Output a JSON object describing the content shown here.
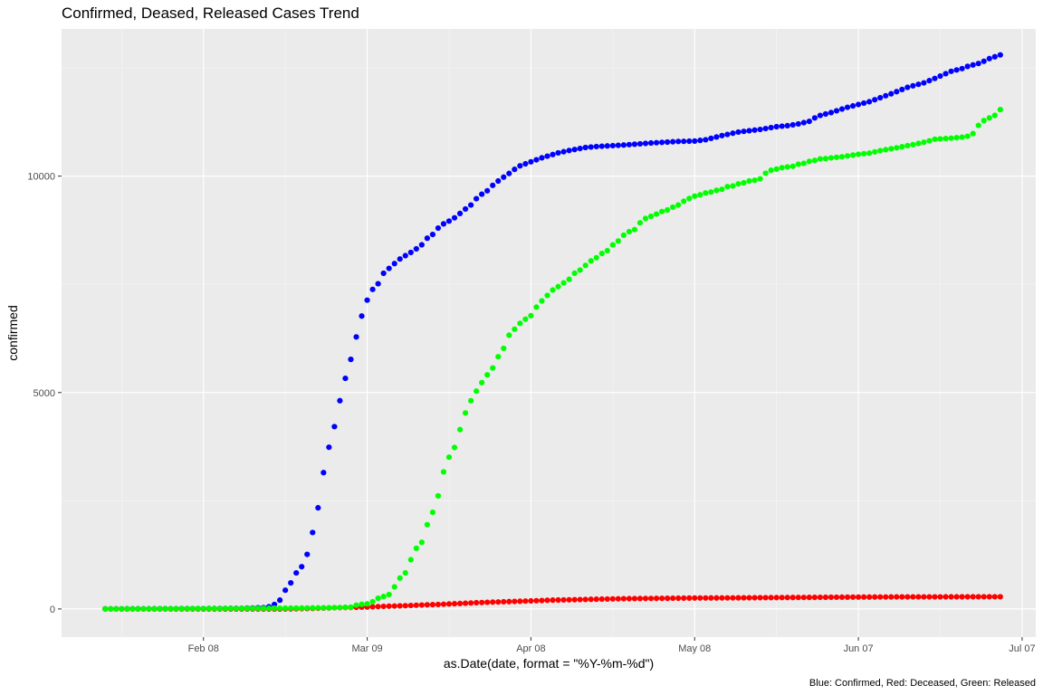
{
  "chart_data": {
    "type": "scatter",
    "title": "Confirmed, Deased, Released Cases Trend",
    "xlabel": "as.Date(date, format = \"%Y-%m-%d\")",
    "ylabel": "confirmed",
    "caption": "Blue: Confirmed, Red: Deceased, Green: Released",
    "x_ticks": [
      "Feb 08",
      "Mar 09",
      "Apr 08",
      "May 08",
      "Jun 07",
      "Jul 07"
    ],
    "x_tick_days": [
      18,
      48,
      78,
      108,
      138,
      168
    ],
    "y_ticks": [
      0,
      5000,
      10000
    ],
    "y_tick_labels": [
      "0",
      "5000",
      "10000"
    ],
    "xlim_days": [
      -8,
      170.5
    ],
    "ylim": [
      -650,
      13400
    ],
    "x_start_date": "2020-01-21",
    "x_end_date": "2020-06-30",
    "grid": true,
    "legend": "none",
    "series": [
      {
        "key": "confirmed",
        "color": "#0000ff",
        "anchors": [
          [
            0,
            1
          ],
          [
            20,
            11
          ],
          [
            25,
            15
          ],
          [
            29,
            31
          ],
          [
            30,
            51
          ],
          [
            31,
            104
          ],
          [
            32,
            204
          ],
          [
            33,
            433
          ],
          [
            34,
            602
          ],
          [
            35,
            833
          ],
          [
            36,
            977
          ],
          [
            37,
            1261
          ],
          [
            38,
            1766
          ],
          [
            39,
            2337
          ],
          [
            40,
            3150
          ],
          [
            41,
            3736
          ],
          [
            42,
            4212
          ],
          [
            43,
            4812
          ],
          [
            44,
            5328
          ],
          [
            45,
            5766
          ],
          [
            46,
            6284
          ],
          [
            47,
            6767
          ],
          [
            48,
            7134
          ],
          [
            49,
            7382
          ],
          [
            50,
            7513
          ],
          [
            51,
            7755
          ],
          [
            52,
            7869
          ],
          [
            53,
            7979
          ],
          [
            54,
            8086
          ],
          [
            55,
            8162
          ],
          [
            56,
            8236
          ],
          [
            57,
            8320
          ],
          [
            58,
            8413
          ],
          [
            59,
            8565
          ],
          [
            60,
            8652
          ],
          [
            61,
            8799
          ],
          [
            62,
            8897
          ],
          [
            63,
            8961
          ],
          [
            64,
            9037
          ],
          [
            65,
            9137
          ],
          [
            66,
            9241
          ],
          [
            67,
            9332
          ],
          [
            68,
            9478
          ],
          [
            69,
            9583
          ],
          [
            70,
            9661
          ],
          [
            71,
            9786
          ],
          [
            72,
            9887
          ],
          [
            73,
            9976
          ],
          [
            74,
            10062
          ],
          [
            75,
            10156
          ],
          [
            76,
            10237
          ],
          [
            77,
            10284
          ],
          [
            78,
            10331
          ],
          [
            80,
            10423
          ],
          [
            83,
            10537
          ],
          [
            85,
            10591
          ],
          [
            88,
            10661
          ],
          [
            90,
            10683
          ],
          [
            95,
            10718
          ],
          [
            100,
            10765
          ],
          [
            105,
            10801
          ],
          [
            108,
            10810
          ],
          [
            110,
            10840
          ],
          [
            113,
            10936
          ],
          [
            116,
            11018
          ],
          [
            120,
            11078
          ],
          [
            123,
            11142
          ],
          [
            125,
            11165
          ],
          [
            127,
            11206
          ],
          [
            129,
            11265
          ],
          [
            130,
            11344
          ],
          [
            131,
            11402
          ],
          [
            133,
            11468
          ],
          [
            136,
            11590
          ],
          [
            140,
            11719
          ],
          [
            144,
            11902
          ],
          [
            147,
            12051
          ],
          [
            150,
            12155
          ],
          [
            152,
            12257
          ],
          [
            155,
            12421
          ],
          [
            157,
            12484
          ],
          [
            158,
            12535
          ],
          [
            160,
            12602
          ],
          [
            161,
            12653
          ],
          [
            162,
            12715
          ],
          [
            163,
            12757
          ],
          [
            164,
            12800
          ]
        ]
      },
      {
        "key": "deceased",
        "color": "#ff0000",
        "anchors": [
          [
            0,
            0
          ],
          [
            31,
            0
          ],
          [
            34,
            2
          ],
          [
            38,
            13
          ],
          [
            42,
            28
          ],
          [
            45,
            35
          ],
          [
            48,
            44
          ],
          [
            51,
            60
          ],
          [
            55,
            75
          ],
          [
            58,
            91
          ],
          [
            61,
            104
          ],
          [
            65,
            126
          ],
          [
            68,
            144
          ],
          [
            71,
            158
          ],
          [
            75,
            174
          ],
          [
            78,
            186
          ],
          [
            82,
            204
          ],
          [
            86,
            214
          ],
          [
            90,
            225
          ],
          [
            95,
            237
          ],
          [
            100,
            243
          ],
          [
            108,
            252
          ],
          [
            115,
            256
          ],
          [
            125,
            264
          ],
          [
            135,
            272
          ],
          [
            145,
            278
          ],
          [
            155,
            280
          ],
          [
            164,
            282
          ]
        ]
      },
      {
        "key": "released",
        "color": "#00ff00",
        "anchors": [
          [
            0,
            0
          ],
          [
            30,
            16
          ],
          [
            37,
            22
          ],
          [
            42,
            30
          ],
          [
            45,
            41
          ],
          [
            46,
            88
          ],
          [
            47,
            108
          ],
          [
            48,
            118
          ],
          [
            49,
            166
          ],
          [
            50,
            247
          ],
          [
            51,
            288
          ],
          [
            52,
            333
          ],
          [
            53,
            510
          ],
          [
            54,
            714
          ],
          [
            55,
            834
          ],
          [
            56,
            1137
          ],
          [
            57,
            1401
          ],
          [
            58,
            1540
          ],
          [
            59,
            1947
          ],
          [
            60,
            2233
          ],
          [
            61,
            2612
          ],
          [
            62,
            3166
          ],
          [
            63,
            3507
          ],
          [
            64,
            3730
          ],
          [
            65,
            4144
          ],
          [
            66,
            4528
          ],
          [
            67,
            4811
          ],
          [
            68,
            5033
          ],
          [
            69,
            5228
          ],
          [
            70,
            5408
          ],
          [
            71,
            5567
          ],
          [
            72,
            5828
          ],
          [
            73,
            6021
          ],
          [
            74,
            6325
          ],
          [
            75,
            6463
          ],
          [
            76,
            6598
          ],
          [
            77,
            6694
          ],
          [
            78,
            6776
          ],
          [
            79,
            6973
          ],
          [
            80,
            7117
          ],
          [
            81,
            7243
          ],
          [
            82,
            7368
          ],
          [
            83,
            7447
          ],
          [
            84,
            7534
          ],
          [
            85,
            7616
          ],
          [
            86,
            7757
          ],
          [
            87,
            7829
          ],
          [
            88,
            7937
          ],
          [
            89,
            8042
          ],
          [
            90,
            8114
          ],
          [
            91,
            8213
          ],
          [
            92,
            8277
          ],
          [
            93,
            8411
          ],
          [
            94,
            8501
          ],
          [
            95,
            8635
          ],
          [
            96,
            8717
          ],
          [
            97,
            8764
          ],
          [
            98,
            8922
          ],
          [
            99,
            9022
          ],
          [
            100,
            9072
          ],
          [
            101,
            9123
          ],
          [
            102,
            9183
          ],
          [
            103,
            9218
          ],
          [
            104,
            9283
          ],
          [
            105,
            9333
          ],
          [
            106,
            9419
          ],
          [
            107,
            9484
          ],
          [
            108,
            9538
          ],
          [
            109,
            9568
          ],
          [
            110,
            9610
          ],
          [
            111,
            9632
          ],
          [
            112,
            9671
          ],
          [
            113,
            9695
          ],
          [
            114,
            9757
          ],
          [
            115,
            9772
          ],
          [
            116,
            9821
          ],
          [
            117,
            9846
          ],
          [
            118,
            9888
          ],
          [
            119,
            9904
          ],
          [
            120,
            9938
          ],
          [
            121,
            10066
          ],
          [
            122,
            10135
          ],
          [
            123,
            10162
          ],
          [
            124,
            10194
          ],
          [
            125,
            10213
          ],
          [
            126,
            10226
          ],
          [
            127,
            10275
          ],
          [
            128,
            10295
          ],
          [
            129,
            10340
          ],
          [
            130,
            10363
          ],
          [
            131,
            10398
          ],
          [
            132,
            10405
          ],
          [
            133,
            10422
          ],
          [
            135,
            10446
          ],
          [
            138,
            10506
          ],
          [
            140,
            10531
          ],
          [
            142,
            10589
          ],
          [
            145,
            10654
          ],
          [
            148,
            10728
          ],
          [
            150,
            10782
          ],
          [
            152,
            10852
          ],
          [
            155,
            10877
          ],
          [
            157,
            10900
          ],
          [
            158,
            10921
          ],
          [
            159,
            10982
          ],
          [
            160,
            11172
          ],
          [
            161,
            11283
          ],
          [
            162,
            11344
          ],
          [
            163,
            11404
          ],
          [
            164,
            11537
          ]
        ]
      }
    ]
  }
}
